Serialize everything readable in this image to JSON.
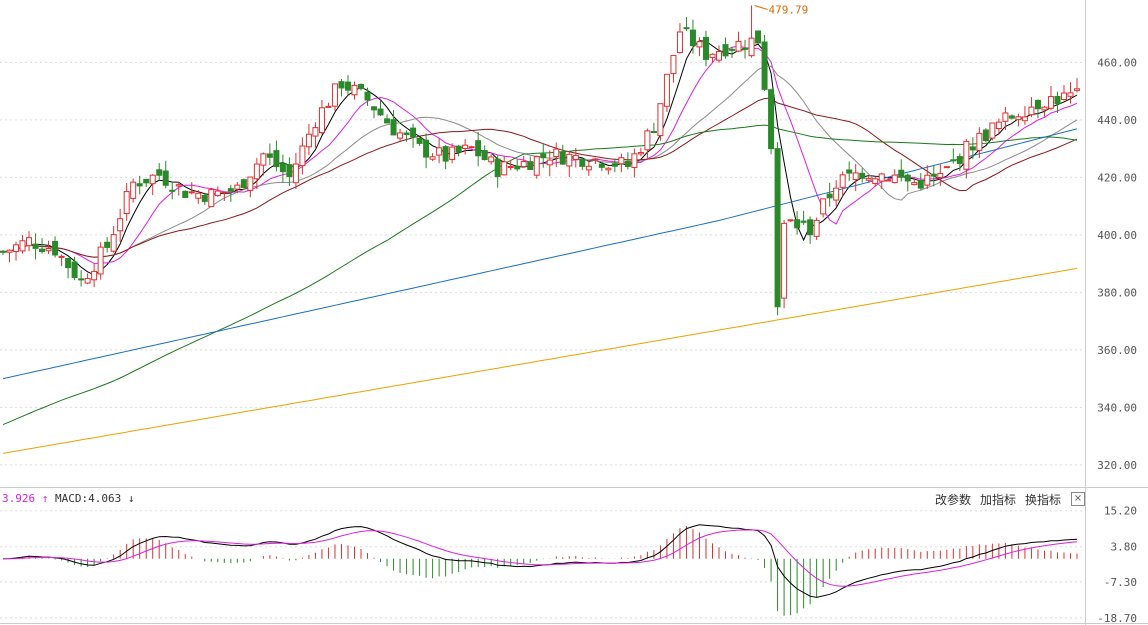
{
  "chart_data": [
    {
      "type": "candlestick",
      "title": "",
      "y_ticks": [
        "460.00",
        "440.00",
        "420.00",
        "400.00",
        "380.00",
        "360.00",
        "340.00",
        "320.00"
      ],
      "ylim": [
        313,
        481
      ],
      "grid": true,
      "annotations": [
        {
          "label": "479.79",
          "candle_index": 115,
          "value": 479.79
        }
      ],
      "anchors": [
        [
          0,
          394
        ],
        [
          4,
          398
        ],
        [
          8,
          395
        ],
        [
          12,
          384
        ],
        [
          16,
          396
        ],
        [
          20,
          418
        ],
        [
          24,
          421
        ],
        [
          28,
          415
        ],
        [
          32,
          414
        ],
        [
          36,
          416
        ],
        [
          40,
          428
        ],
        [
          44,
          420
        ],
        [
          48,
          440
        ],
        [
          52,
          453
        ],
        [
          56,
          447
        ],
        [
          60,
          437
        ],
        [
          64,
          430
        ],
        [
          68,
          427
        ],
        [
          72,
          430
        ],
        [
          76,
          423
        ],
        [
          80,
          425
        ],
        [
          84,
          428
        ],
        [
          88,
          427
        ],
        [
          92,
          426
        ],
        [
          96,
          424
        ],
        [
          100,
          438
        ],
        [
          104,
          471
        ],
        [
          108,
          463
        ],
        [
          112,
          466
        ],
        [
          116,
          468
        ],
        [
          120,
          405
        ],
        [
          124,
          402
        ],
        [
          128,
          418
        ],
        [
          132,
          422
        ],
        [
          136,
          421
        ],
        [
          140,
          418
        ],
        [
          144,
          420
        ],
        [
          148,
          430
        ],
        [
          152,
          437
        ],
        [
          156,
          443
        ],
        [
          160,
          447
        ],
        [
          164,
          448
        ]
      ],
      "moving_averages": [
        {
          "color": "#000000"
        },
        {
          "color": "#e020e0"
        },
        {
          "color": "#8c8c8c"
        },
        {
          "color": "#8b1a1a"
        },
        {
          "color": "#1a7a1a"
        },
        {
          "color": "#1a6fc4"
        },
        {
          "color": "#f0a000"
        }
      ],
      "colors": {
        "up": "#e03030",
        "down": "#2a8a2a"
      }
    },
    {
      "type": "macd",
      "legend": [
        "3.926",
        "MACD:4.063"
      ],
      "y_ticks": [
        "15.20",
        "3.80",
        "-7.30",
        "-18.70"
      ],
      "ylim": [
        -20,
        17
      ]
    }
  ],
  "controls": {
    "params": "改参数",
    "add": "加指标",
    "switch": "换指标",
    "close": "×"
  },
  "legend_arrows": {
    "up": "↑",
    "down": "↓"
  }
}
